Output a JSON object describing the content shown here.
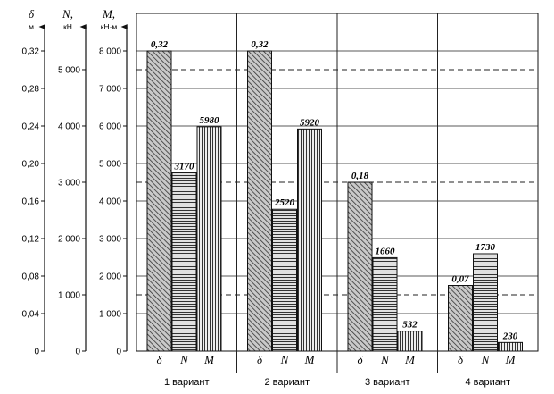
{
  "chart_data": {
    "type": "bar",
    "categories": [
      "1 вариант",
      "2 вариант",
      "3 вариант",
      "4 вариант"
    ],
    "bar_symbols": [
      "δ",
      "N",
      "M"
    ],
    "axes": [
      {
        "key": "delta",
        "title": "δ",
        "unit": "м",
        "range": [
          0,
          0.32
        ],
        "ticks": [
          "0",
          "0,04",
          "0,08",
          "0,12",
          "0,16",
          "0,20",
          "0,24",
          "0,28",
          "0,32"
        ]
      },
      {
        "key": "N",
        "title": "N,",
        "unit": "кН",
        "range": [
          0,
          5333
        ],
        "ticks": [
          "0",
          "1 000",
          "2 000",
          "3 000",
          "4 000",
          "5 000"
        ]
      },
      {
        "key": "M",
        "title": "M,",
        "unit": "кН·м",
        "range": [
          0,
          8000
        ],
        "ticks": [
          "0",
          "1 000",
          "2 000",
          "3 000",
          "4 000",
          "5 000",
          "6 000",
          "7 000",
          "8 000"
        ]
      }
    ],
    "series": [
      {
        "name": "δ",
        "axis": "delta",
        "values": [
          0.32,
          0.32,
          0.18,
          0.07
        ],
        "labels": [
          "0,32",
          "0,32",
          "0,18",
          "0,07"
        ]
      },
      {
        "name": "N",
        "axis": "N",
        "values": [
          3170,
          2520,
          1660,
          1730
        ],
        "labels": [
          "3170",
          "2520",
          "1660",
          "1730"
        ]
      },
      {
        "name": "M",
        "axis": "M",
        "values": [
          5980,
          5920,
          532,
          230
        ],
        "labels": [
          "5980",
          "5920",
          "532",
          "230"
        ]
      }
    ],
    "dashed_levels_M": [
      1500,
      4500,
      7500
    ],
    "grid": true
  }
}
